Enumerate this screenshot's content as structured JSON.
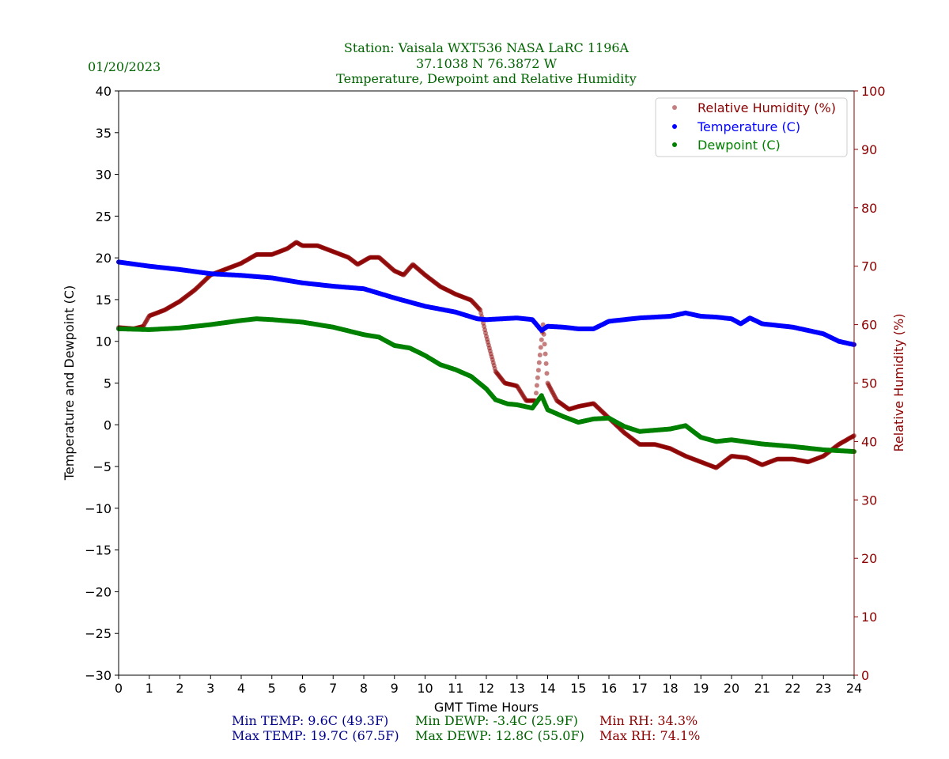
{
  "header": {
    "date": "01/20/2023",
    "title_line1": "Station:  Vaisala WXT536  NASA LaRC 1196A",
    "title_line2": "37.1038 N 76.3872 W",
    "title_line3": "Temperature, Dewpoint and Relative Humidity"
  },
  "stats": {
    "min_temp": "Min TEMP: 9.6C (49.3F)",
    "max_temp": "Max TEMP: 19.7C (67.5F)",
    "min_dewp": "Min DEWP: -3.4C (25.9F)",
    "max_dewp": "Max DEWP: 12.8C (55.0F)",
    "min_rh": "Min RH: 34.3%",
    "max_rh": "Max RH: 74.1%"
  },
  "colors": {
    "title": "#006400",
    "temp": "#0000ff",
    "dewp": "#008000",
    "rh": "#8b0000",
    "temp_stats": "#00008b"
  },
  "chart_data": {
    "type": "scatter",
    "title": "Temperature, Dewpoint and Relative Humidity",
    "xlabel": "GMT Time Hours",
    "ylabel": "Temperature and Dewpoint (C)",
    "y2label": "Relative Humidity (%)",
    "xlim": [
      0,
      24
    ],
    "ylim": [
      -30,
      40
    ],
    "y2lim": [
      0,
      100
    ],
    "xticks": [
      "0",
      "1",
      "2",
      "3",
      "4",
      "5",
      "6",
      "7",
      "8",
      "9",
      "10",
      "11",
      "12",
      "13",
      "14",
      "15",
      "16",
      "17",
      "18",
      "19",
      "20",
      "21",
      "22",
      "23",
      "24"
    ],
    "yticks": [
      "40",
      "35",
      "30",
      "25",
      "20",
      "15",
      "10",
      "5",
      "0",
      "−5",
      "−10",
      "−15",
      "−20",
      "−25",
      "−30"
    ],
    "y2ticks": [
      "100",
      "90",
      "80",
      "70",
      "60",
      "50",
      "40",
      "30",
      "20",
      "10",
      "0"
    ],
    "legend_position": "top-right",
    "series": [
      {
        "name": "Relative Humidity (%)",
        "axis": "right",
        "x": [
          0,
          0.5,
          0.8,
          1,
          1.5,
          2,
          2.5,
          3,
          3.5,
          4,
          4.5,
          5,
          5.5,
          5.8,
          6,
          6.5,
          7,
          7.5,
          7.8,
          8.2,
          8.5,
          9,
          9.3,
          9.6,
          10,
          10.5,
          11,
          11.5,
          11.8,
          12,
          12.3,
          12.6,
          13,
          13.3,
          13.6,
          13.85,
          14,
          14.3,
          14.7,
          15,
          15.5,
          16,
          16.5,
          17,
          17.5,
          18,
          18.5,
          19,
          19.5,
          20,
          20.5,
          21,
          21.5,
          22,
          22.5,
          23,
          23.5,
          24
        ],
        "y": [
          59.5,
          59.3,
          59.7,
          61.5,
          62.5,
          64,
          66,
          68.5,
          69.5,
          70.5,
          72,
          72,
          73,
          74.1,
          73.5,
          73.5,
          72.5,
          71.5,
          70.3,
          71.5,
          71.5,
          69.2,
          68.5,
          70.3,
          68.5,
          66.5,
          65.2,
          64.2,
          62.5,
          58,
          52,
          50,
          49.5,
          47,
          47,
          60,
          50,
          47,
          45.5,
          46,
          46.5,
          44,
          41.5,
          39.5,
          39.5,
          38.8,
          37.5,
          36.5,
          35.5,
          37.5,
          37.2,
          36,
          37,
          37,
          36.5,
          37.5,
          39.5,
          41
        ]
      },
      {
        "name": "Temperature (C)",
        "axis": "left",
        "x": [
          0,
          1,
          2,
          3,
          4,
          5,
          6,
          7,
          8,
          9,
          10,
          11,
          11.7,
          12,
          13,
          13.5,
          13.8,
          14,
          14.5,
          15,
          15.5,
          16,
          16.5,
          17,
          18,
          18.5,
          19,
          19.5,
          20,
          20.3,
          20.6,
          21,
          22,
          23,
          23.5,
          24
        ],
        "y": [
          19.5,
          19.0,
          18.6,
          18.1,
          17.9,
          17.6,
          17.0,
          16.6,
          16.3,
          15.2,
          14.2,
          13.5,
          12.7,
          12.6,
          12.8,
          12.6,
          11.3,
          11.8,
          11.7,
          11.5,
          11.5,
          12.4,
          12.6,
          12.8,
          13.0,
          13.4,
          13.0,
          12.9,
          12.7,
          12.1,
          12.8,
          12.1,
          11.7,
          10.9,
          10.0,
          9.6
        ]
      },
      {
        "name": "Dewpoint (C)",
        "axis": "left",
        "x": [
          0,
          1,
          2,
          3,
          4,
          4.5,
          5,
          6,
          7,
          8,
          8.5,
          9,
          9.5,
          10,
          10.5,
          11,
          11.5,
          12,
          12.3,
          12.7,
          13,
          13.5,
          13.8,
          14,
          14.5,
          15,
          15.5,
          16,
          16.5,
          17,
          18,
          18.5,
          19,
          19.5,
          20,
          21,
          22,
          23,
          24
        ],
        "y": [
          11.5,
          11.4,
          11.6,
          12.0,
          12.5,
          12.7,
          12.6,
          12.3,
          11.7,
          10.8,
          10.5,
          9.5,
          9.2,
          8.3,
          7.2,
          6.6,
          5.8,
          4.3,
          3.0,
          2.5,
          2.4,
          2.0,
          3.5,
          1.8,
          1.0,
          0.3,
          0.7,
          0.8,
          -0.2,
          -0.8,
          -0.5,
          -0.1,
          -1.5,
          -2.0,
          -1.8,
          -2.3,
          -2.6,
          -3.0,
          -3.2
        ]
      }
    ]
  }
}
